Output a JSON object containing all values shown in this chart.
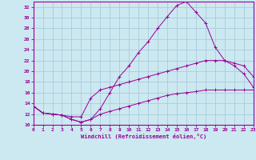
{
  "xlabel": "Windchill (Refroidissement éolien,°C)",
  "bg_color": "#cce8f0",
  "grid_color": "#aaccdd",
  "line_color": "#990099",
  "xlim": [
    0,
    23
  ],
  "ylim": [
    10,
    33
  ],
  "xticks": [
    0,
    1,
    2,
    3,
    4,
    5,
    6,
    7,
    8,
    9,
    10,
    11,
    12,
    13,
    14,
    15,
    16,
    17,
    18,
    19,
    20,
    21,
    22,
    23
  ],
  "yticks": [
    10,
    12,
    14,
    16,
    18,
    20,
    22,
    24,
    26,
    28,
    30,
    32
  ],
  "line1_x": [
    0,
    1,
    2,
    3,
    4,
    5,
    6,
    7,
    8,
    9,
    10,
    11,
    12,
    13,
    14,
    15,
    16,
    17,
    18,
    19,
    20,
    21,
    22,
    23
  ],
  "line1_y": [
    13.5,
    12.2,
    12.0,
    11.8,
    11.0,
    10.5,
    11.0,
    13.0,
    16.0,
    19.0,
    21.0,
    23.5,
    25.5,
    28.0,
    30.2,
    32.3,
    33.0,
    31.0,
    29.0,
    24.5,
    22.0,
    21.0,
    19.5,
    17.0
  ],
  "line2_x": [
    0,
    1,
    2,
    3,
    4,
    5,
    6,
    7,
    8,
    9,
    10,
    11,
    12,
    13,
    14,
    15,
    16,
    17,
    18,
    19,
    20,
    21,
    22,
    23
  ],
  "line2_y": [
    13.5,
    12.2,
    12.0,
    11.8,
    11.5,
    11.5,
    15.0,
    16.5,
    17.0,
    17.5,
    18.0,
    18.5,
    19.0,
    19.5,
    20.0,
    20.5,
    21.0,
    21.5,
    22.0,
    22.0,
    22.0,
    21.5,
    21.0,
    19.0
  ],
  "line3_x": [
    0,
    1,
    2,
    3,
    4,
    5,
    6,
    7,
    8,
    9,
    10,
    11,
    12,
    13,
    14,
    15,
    16,
    17,
    18,
    19,
    20,
    21,
    22,
    23
  ],
  "line3_y": [
    13.5,
    12.2,
    12.0,
    11.8,
    11.0,
    10.5,
    11.0,
    12.0,
    12.5,
    13.0,
    13.5,
    14.0,
    14.5,
    15.0,
    15.5,
    15.8,
    16.0,
    16.2,
    16.5,
    16.5,
    16.5,
    16.5,
    16.5,
    16.5
  ]
}
